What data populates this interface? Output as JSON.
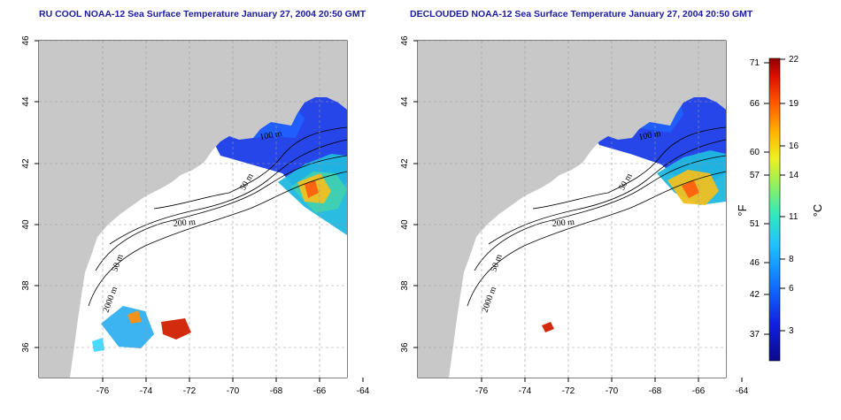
{
  "panels": [
    {
      "title": "RU COOL NOAA-12 Sea Surface Temperature January 27, 2004 20:50 GMT",
      "contour_labels": {
        "m50": "50 m",
        "m100": "100 m",
        "m200": "200 m",
        "m2000": "2000 m"
      },
      "coverage": "cloud"
    },
    {
      "title": "DECLOUDED NOAA-12 Sea Surface Temperature January 27, 2004 20:50 GMT",
      "contour_labels": {
        "m50": "50 m",
        "m100": "100 m",
        "m200": "200 m",
        "m2000": "2000 m"
      },
      "coverage": "declouded"
    }
  ],
  "axes": {
    "lon_ticks": [
      "-76",
      "-74",
      "-72",
      "-70",
      "-68",
      "-66",
      "-64"
    ],
    "lat_ticks": [
      "36",
      "38",
      "40",
      "42",
      "44",
      "46"
    ]
  },
  "colorbar": {
    "f_ticks": [
      "71",
      "66",
      "60",
      "57",
      "51",
      "46",
      "42",
      "37"
    ],
    "c_ticks": [
      "22",
      "19",
      "16",
      "14",
      "11",
      "8",
      "6",
      "3"
    ],
    "f_label": "°F",
    "c_label": "°C"
  },
  "colors": {
    "land": "#c8c8c8",
    "title": "#1a1aa0",
    "cold": "#1030d0",
    "warm": "#e8a000"
  }
}
